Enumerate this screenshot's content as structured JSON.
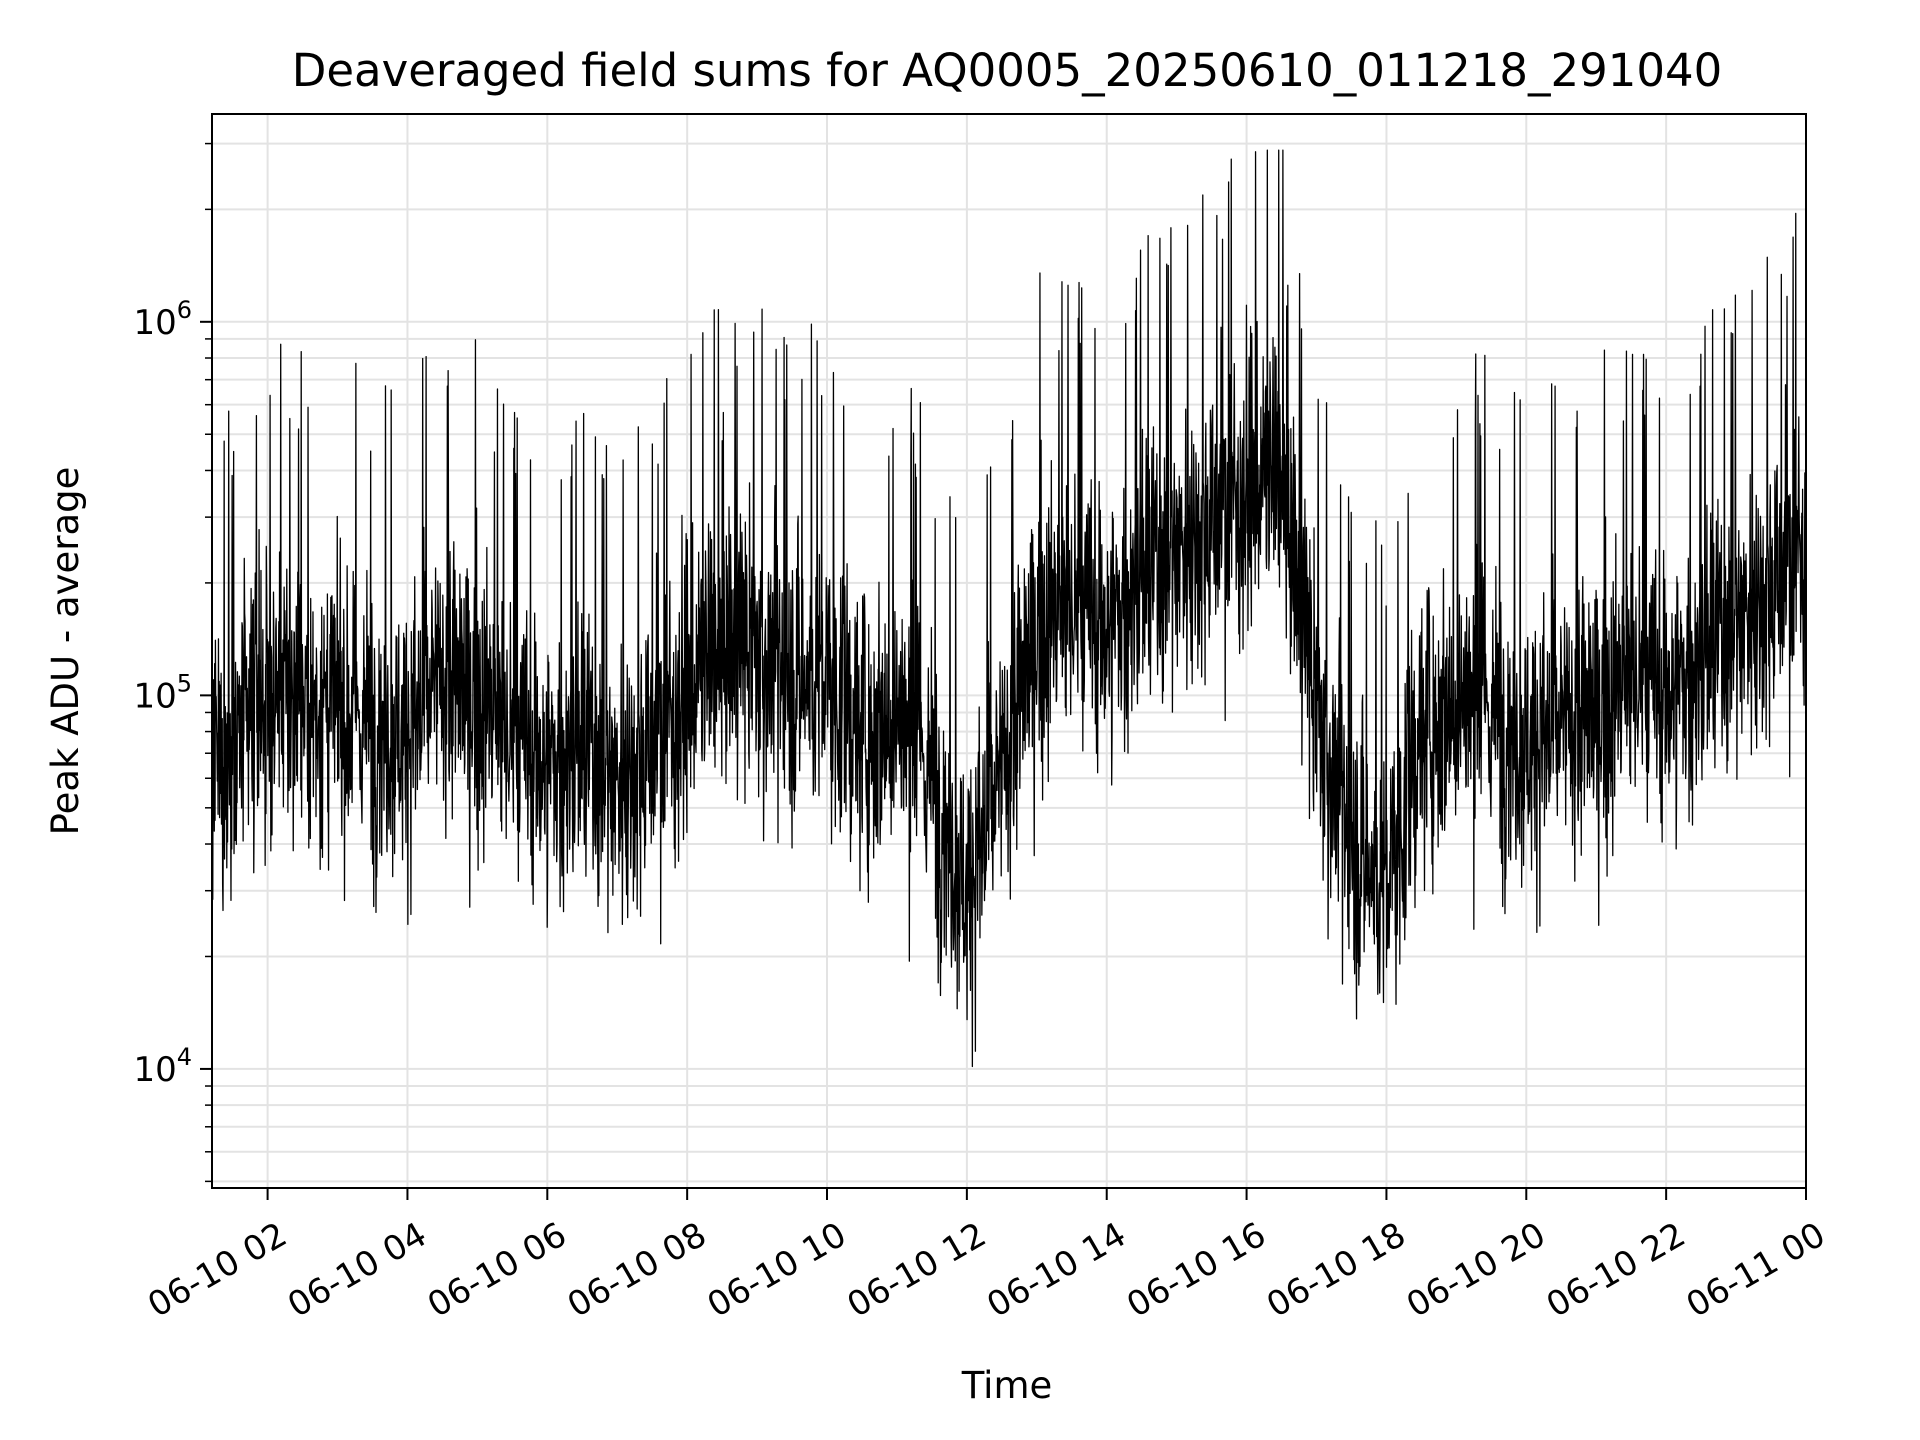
{
  "chart_data": {
    "type": "line",
    "title": "Deaveraged field sums for AQ0005_20250610_011218_291040",
    "xlabel": "Time",
    "ylabel": "Peak ADU - average",
    "y_scale": "log",
    "xlim": [
      "2025-06-10 01:12:18",
      "2025-06-11 00:00:00"
    ],
    "ylim": [
      4800,
      3600000
    ],
    "grid": true,
    "line_color": "#000000",
    "grid_color": "#e3e3e3",
    "x_ticks": [
      {
        "label": "06-10 02",
        "time": "2025-06-10 02:00"
      },
      {
        "label": "06-10 04",
        "time": "2025-06-10 04:00"
      },
      {
        "label": "06-10 06",
        "time": "2025-06-10 06:00"
      },
      {
        "label": "06-10 08",
        "time": "2025-06-10 08:00"
      },
      {
        "label": "06-10 10",
        "time": "2025-06-10 10:00"
      },
      {
        "label": "06-10 12",
        "time": "2025-06-10 12:00"
      },
      {
        "label": "06-10 14",
        "time": "2025-06-10 14:00"
      },
      {
        "label": "06-10 16",
        "time": "2025-06-10 16:00"
      },
      {
        "label": "06-10 18",
        "time": "2025-06-10 18:00"
      },
      {
        "label": "06-10 20",
        "time": "2025-06-10 20:00"
      },
      {
        "label": "06-10 22",
        "time": "2025-06-10 22:00"
      },
      {
        "label": "06-11 00",
        "time": "2025-06-11 00:00"
      }
    ],
    "y_ticks": [
      {
        "base": "10",
        "exp": "4",
        "value": 10000
      },
      {
        "base": "10",
        "exp": "5",
        "value": 100000
      },
      {
        "base": "10",
        "exp": "6",
        "value": 1000000
      }
    ],
    "series": [
      {
        "x": [
          "2025-06-10 01:12",
          "2025-06-10 01:30",
          "2025-06-10 02:00",
          "2025-06-10 02:30",
          "2025-06-10 03:00",
          "2025-06-10 03:30",
          "2025-06-10 04:00",
          "2025-06-10 04:30",
          "2025-06-10 05:00",
          "2025-06-10 05:30",
          "2025-06-10 06:00",
          "2025-06-10 06:30",
          "2025-06-10 07:00",
          "2025-06-10 07:30",
          "2025-06-10 08:00",
          "2025-06-10 08:30",
          "2025-06-10 09:00",
          "2025-06-10 09:30",
          "2025-06-10 10:00",
          "2025-06-10 10:30",
          "2025-06-10 11:00",
          "2025-06-10 11:30",
          "2025-06-10 12:00",
          "2025-06-10 12:30",
          "2025-06-10 13:00",
          "2025-06-10 13:30",
          "2025-06-10 14:00",
          "2025-06-10 14:30",
          "2025-06-10 15:00",
          "2025-06-10 15:30",
          "2025-06-10 16:00",
          "2025-06-10 16:30",
          "2025-06-10 17:00",
          "2025-06-10 17:30",
          "2025-06-10 18:00",
          "2025-06-10 18:30",
          "2025-06-10 19:00",
          "2025-06-10 19:30",
          "2025-06-10 20:00",
          "2025-06-10 20:30",
          "2025-06-10 21:00",
          "2025-06-10 21:30",
          "2025-06-10 22:00",
          "2025-06-10 22:30",
          "2025-06-10 23:00",
          "2025-06-10 23:30",
          "2025-06-11 00:00"
        ],
        "y": [
          60000,
          70000,
          100000,
          95000,
          90000,
          85000,
          80000,
          110000,
          100000,
          75000,
          65000,
          70000,
          60000,
          75000,
          100000,
          140000,
          130000,
          110000,
          110000,
          80000,
          90000,
          60000,
          30000,
          60000,
          150000,
          170000,
          150000,
          200000,
          250000,
          300000,
          350000,
          400000,
          90000,
          40000,
          30000,
          80000,
          100000,
          90000,
          75000,
          80000,
          90000,
          110000,
          100000,
          120000,
          160000,
          200000,
          250000
        ]
      }
    ]
  }
}
